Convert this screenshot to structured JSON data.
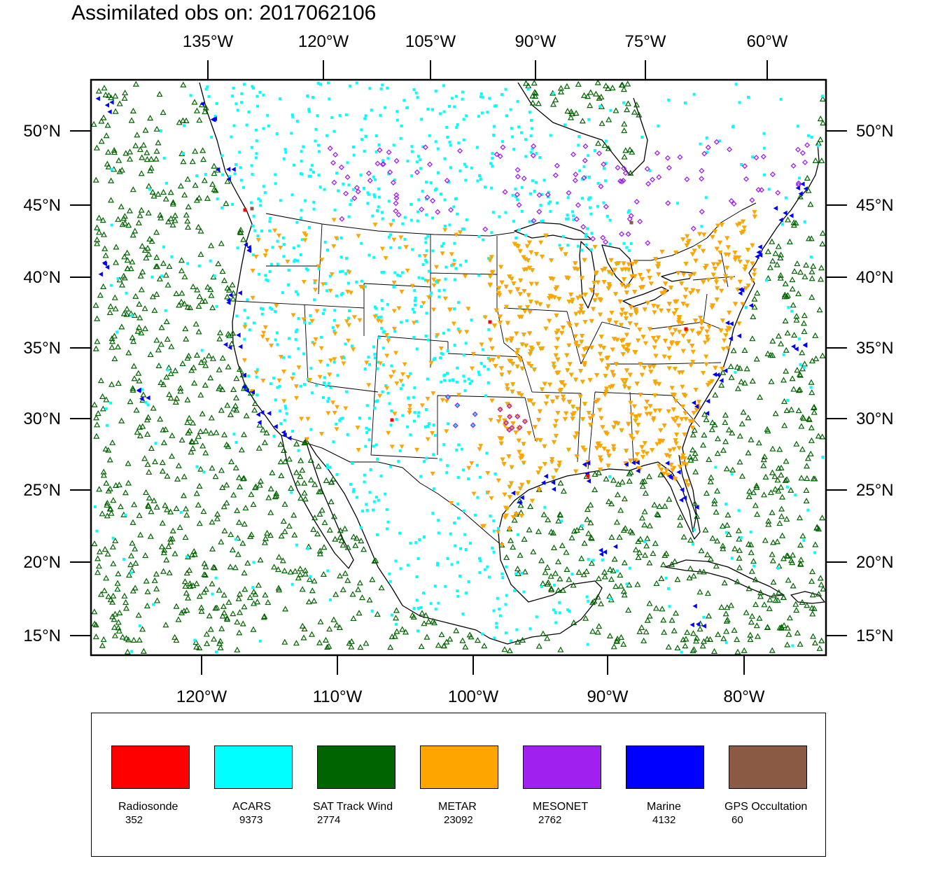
{
  "title": "Assimilated obs on: 2017062106",
  "axes": {
    "top_lon_labels": [
      "135°W",
      "120°W",
      "105°W",
      "90°W",
      "75°W",
      "60°W"
    ],
    "bottom_lon_labels": [
      "120°W",
      "110°W",
      "100°W",
      "90°W",
      "80°W"
    ],
    "left_lat_labels": [
      "50°N",
      "45°N",
      "40°N",
      "35°N",
      "30°N",
      "25°N",
      "20°N",
      "15°N"
    ],
    "right_lat_labels": [
      "50°N",
      "45°N",
      "40°N",
      "35°N",
      "30°N",
      "25°N",
      "20°N",
      "15°N"
    ]
  },
  "legend": [
    {
      "name": "Radiosonde",
      "count": "352",
      "color": "#ff0000"
    },
    {
      "name": "ACARS",
      "count": "9373",
      "color": "#00ffff"
    },
    {
      "name": "SAT Track Wind",
      "count": "2774",
      "color": "#006400"
    },
    {
      "name": "METAR",
      "count": "23092",
      "color": "#ffa500"
    },
    {
      "name": "MESONET",
      "count": "2762",
      "color": "#a020f0"
    },
    {
      "name": "Marine",
      "count": "4132",
      "color": "#0000ff"
    },
    {
      "name": "GPS Occultation",
      "count": "60",
      "color": "#8b5a45"
    }
  ],
  "map_layers": [
    {
      "obs_type": "SAT Track Wind",
      "symbol": "triangle-up-outline",
      "region": "open ocean (Pacific, Gulf, Atlantic, Caribbean)"
    },
    {
      "obs_type": "ACARS",
      "symbol": "square",
      "region": "flight tracks over the continent"
    },
    {
      "obs_type": "METAR",
      "symbol": "triangle-down",
      "region": "surface stations, densest in eastern US"
    },
    {
      "obs_type": "MESONET",
      "symbol": "diamond",
      "region": "Oklahoma and Canadian provinces"
    },
    {
      "obs_type": "Marine",
      "symbol": "triangle-left",
      "region": "coastlines and buoys"
    },
    {
      "obs_type": "Radiosonde",
      "symbol": "square",
      "region": "sparse upper-air stations"
    }
  ]
}
